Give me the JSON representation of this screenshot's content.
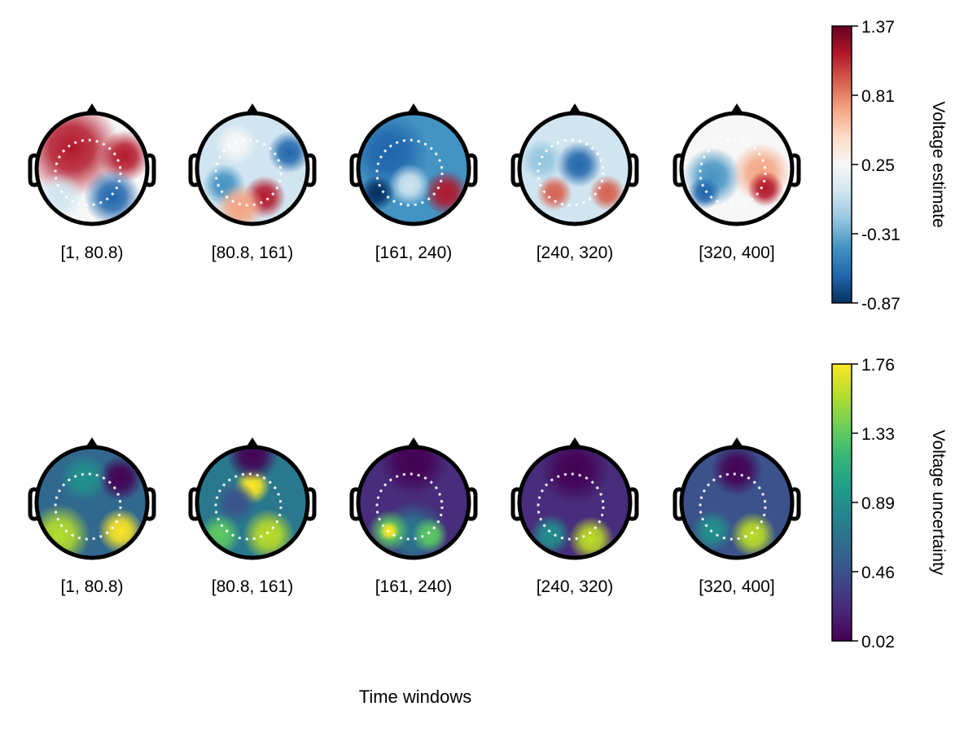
{
  "chart_data": {
    "type": "heatmap",
    "subtype": "topoplot-series",
    "xlabel": "Time windows",
    "windows": [
      "[1, 80.8)",
      "[80.8, 161)",
      "[161, 240)",
      "[240, 320)",
      "[320, 400]"
    ],
    "rows": [
      {
        "name": "estimate",
        "colorbar_label": "Voltage estimate",
        "colormap": "RdBu (reversed)",
        "range": [
          -0.87,
          1.37
        ],
        "ticks": [
          "1.37",
          "0.81",
          "0.25",
          "-0.31",
          "-0.87"
        ],
        "colors": [
          "#67001f",
          "#b2182b",
          "#d6604d",
          "#f4a582",
          "#fddbc7",
          "#f7f7f7",
          "#d1e5f0",
          "#92c5de",
          "#4393c3",
          "#2166ac",
          "#053061"
        ]
      },
      {
        "name": "uncertainty",
        "colorbar_label": "Voltage uncertainty",
        "colormap": "viridis",
        "range": [
          0.02,
          1.76
        ],
        "ticks": [
          "1.76",
          "1.33",
          "0.89",
          "0.46",
          "0.02"
        ],
        "colors": [
          "#fde725",
          "#b5de2b",
          "#6ece58",
          "#35b779",
          "#1f9e89",
          "#26828e",
          "#31688e",
          "#3e4989",
          "#482878",
          "#440154"
        ]
      }
    ]
  }
}
